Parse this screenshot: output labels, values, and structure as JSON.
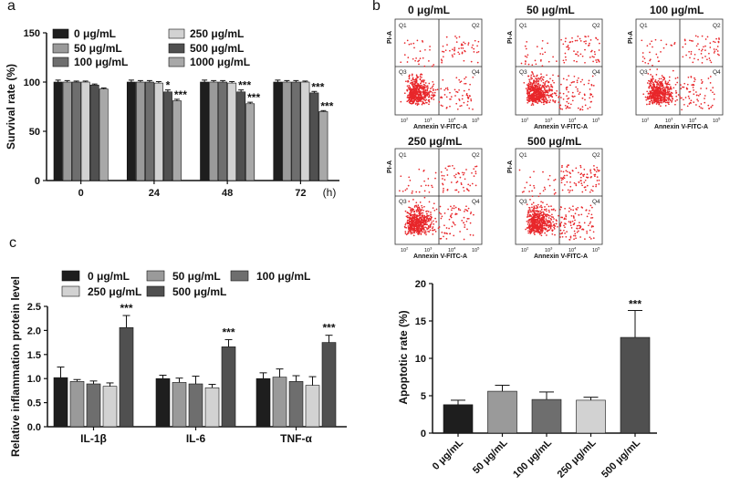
{
  "panels": {
    "a": "a",
    "b": "b",
    "c": "c"
  },
  "chart_data": [
    {
      "id": "survival",
      "type": "bar",
      "ylabel": "Survival rate (%)",
      "xlabel": "(h)",
      "ylim": [
        0,
        150
      ],
      "yticks": [
        "0",
        "50",
        "100",
        "150"
      ],
      "categories": [
        "0",
        "24",
        "48",
        "72"
      ],
      "series": [
        {
          "name": "0 μg/mL",
          "values": [
            100,
            100,
            100,
            100
          ],
          "errors": [
            2,
            2,
            2,
            2
          ],
          "color": "#1e1e1e"
        },
        {
          "name": "50 μg/mL",
          "values": [
            100,
            100,
            100,
            100
          ],
          "errors": [
            1.5,
            1.5,
            1.5,
            1.5
          ],
          "color": "#9a9a9a"
        },
        {
          "name": "100 μg/mL",
          "values": [
            100,
            100,
            100,
            100
          ],
          "errors": [
            1,
            1.5,
            1.5,
            1.5
          ],
          "color": "#6e6e6e"
        },
        {
          "name": "250 μg/mL",
          "values": [
            100,
            99,
            99,
            100
          ],
          "errors": [
            1,
            1.5,
            1.5,
            1
          ],
          "color": "#d2d2d2"
        },
        {
          "name": "500 μg/mL",
          "values": [
            97,
            90,
            90,
            89
          ],
          "errors": [
            1,
            2,
            2,
            1.5
          ],
          "color": "#505050"
        },
        {
          "name": "1000 μg/mL",
          "values": [
            93,
            81,
            78,
            70
          ],
          "errors": [
            1,
            1.5,
            1.5,
            1
          ],
          "color": "#a8a8a8"
        }
      ],
      "annotations": [
        {
          "category": 1,
          "series": 4,
          "text": "*"
        },
        {
          "category": 1,
          "series": 5,
          "text": "***"
        },
        {
          "category": 2,
          "series": 4,
          "text": "***"
        },
        {
          "category": 2,
          "series": 5,
          "text": "***"
        },
        {
          "category": 3,
          "series": 4,
          "text": "***"
        },
        {
          "category": 3,
          "series": 5,
          "text": "***"
        }
      ]
    },
    {
      "id": "inflammation",
      "type": "bar",
      "ylabel": "Relative inflammation protein level",
      "ylim": [
        0,
        2.5
      ],
      "yticks": [
        "0.0",
        "0.5",
        "1.0",
        "1.5",
        "2.0",
        "2.5"
      ],
      "categories": [
        "IL-1β",
        "IL-6",
        "TNF-α"
      ],
      "series": [
        {
          "name": "0 μg/mL",
          "values": [
            1.02,
            1.0,
            1.0
          ],
          "errors": [
            0.22,
            0.07,
            0.12
          ],
          "color": "#1e1e1e"
        },
        {
          "name": "50 μg/mL",
          "values": [
            0.94,
            0.92,
            1.03
          ],
          "errors": [
            0.04,
            0.09,
            0.17
          ],
          "color": "#9a9a9a"
        },
        {
          "name": "100 μg/mL",
          "values": [
            0.89,
            0.89,
            0.94
          ],
          "errors": [
            0.06,
            0.16,
            0.12
          ],
          "color": "#6e6e6e"
        },
        {
          "name": "250 μg/mL",
          "values": [
            0.84,
            0.81,
            0.86
          ],
          "errors": [
            0.07,
            0.07,
            0.18
          ],
          "color": "#d2d2d2"
        },
        {
          "name": "500 μg/mL",
          "values": [
            2.06,
            1.66,
            1.75
          ],
          "errors": [
            0.25,
            0.15,
            0.15
          ],
          "color": "#505050"
        }
      ],
      "annotations": [
        {
          "category": 0,
          "series": 4,
          "text": "***"
        },
        {
          "category": 1,
          "series": 4,
          "text": "***"
        },
        {
          "category": 2,
          "series": 4,
          "text": "***"
        }
      ]
    },
    {
      "id": "apoptosis",
      "type": "bar",
      "ylabel": "Apoptotic rate (%)",
      "ylim": [
        0,
        20
      ],
      "yticks": [
        "0",
        "5",
        "10",
        "15",
        "20"
      ],
      "categories": [
        "0 μg/mL",
        "50 μg/mL",
        "100 μg/mL",
        "250 μg/mL",
        "500 μg/mL"
      ],
      "values": [
        3.8,
        5.6,
        4.5,
        4.4,
        12.8
      ],
      "errors": [
        0.6,
        0.8,
        1.0,
        0.4,
        3.6
      ],
      "colors": [
        "#1e1e1e",
        "#9a9a9a",
        "#6e6e6e",
        "#d2d2d2",
        "#505050"
      ],
      "annotations": [
        {
          "index": 4,
          "text": "***"
        }
      ]
    }
  ],
  "flow_panels": [
    {
      "title": "0 μg/mL",
      "density": 1.0
    },
    {
      "title": "50 μg/mL",
      "density": 1.25
    },
    {
      "title": "100  μg/mL",
      "density": 1.15
    },
    {
      "title": "250 μg/mL",
      "density": 1.1
    },
    {
      "title": "500 μg/mL",
      "density": 1.8
    }
  ],
  "flow_common": {
    "x_axis": "Annexin V-FITC-A",
    "y_axis": "PI-A",
    "quadrants": [
      "Q1",
      "Q2",
      "Q3",
      "Q4"
    ],
    "ticks": [
      "10",
      "10",
      "10",
      "10"
    ],
    "tick_exp": [
      "2",
      "3",
      "4",
      "5"
    ],
    "dot_color": "#e8262a"
  }
}
